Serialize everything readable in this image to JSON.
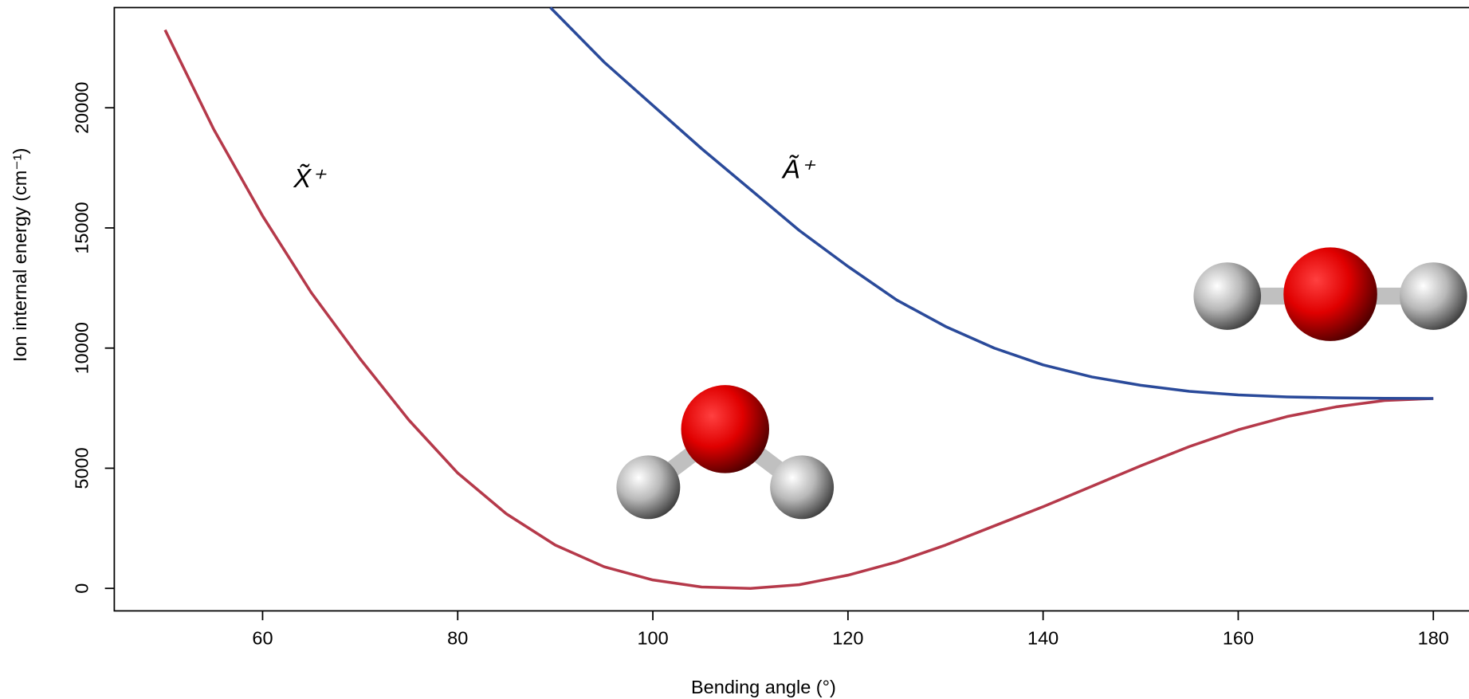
{
  "chart_data": {
    "type": "line",
    "xlabel": "Bending angle (°)",
    "ylabel": "Ion internal energy (cm⁻¹)",
    "xlim": [
      44.8,
      185
    ],
    "ylim": [
      -936,
      24170
    ],
    "xticks": [
      60,
      80,
      100,
      120,
      140,
      160,
      180
    ],
    "yticks": [
      0,
      5000,
      10000,
      15000,
      20000
    ],
    "series": [
      {
        "name": "X̃⁺",
        "color": "#b5394a",
        "x": [
          50,
          55,
          60,
          65,
          70,
          75,
          80,
          85,
          90,
          95,
          100,
          105,
          110,
          115,
          120,
          125,
          130,
          135,
          140,
          145,
          150,
          155,
          160,
          165,
          170,
          175,
          180
        ],
        "values": [
          23240,
          19100,
          15500,
          12300,
          9550,
          7000,
          4800,
          3100,
          1800,
          900,
          350,
          60,
          0,
          150,
          550,
          1100,
          1800,
          2600,
          3400,
          4250,
          5100,
          5900,
          6600,
          7150,
          7550,
          7820,
          7900
        ]
      },
      {
        "name": "Ã⁺",
        "color": "#2a4a9a",
        "x": [
          89.5,
          95,
          100,
          105,
          110,
          115,
          120,
          125,
          130,
          135,
          140,
          145,
          150,
          155,
          160,
          165,
          170,
          175,
          180
        ],
        "values": [
          24170,
          21900,
          20100,
          18300,
          16600,
          14900,
          13400,
          12000,
          10900,
          10000,
          9300,
          8800,
          8450,
          8200,
          8050,
          7970,
          7930,
          7910,
          7900
        ]
      }
    ]
  }
}
